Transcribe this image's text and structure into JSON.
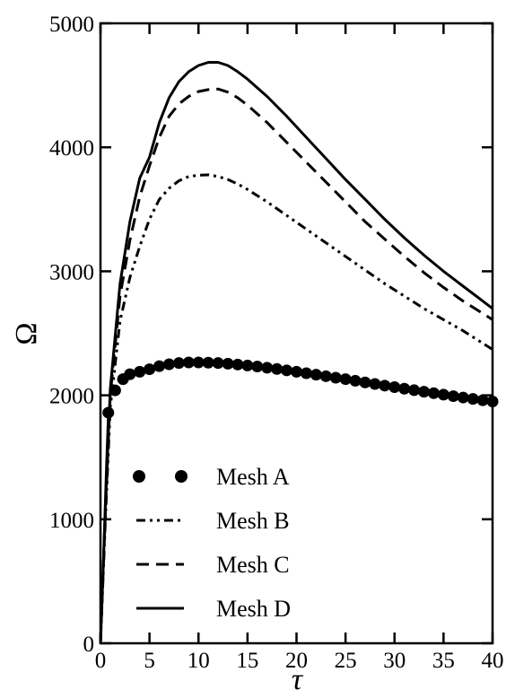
{
  "chart_data": {
    "type": "line",
    "title": "",
    "xlabel": "τ",
    "ylabel": "Ω",
    "xlim": [
      0,
      40
    ],
    "ylim": [
      0,
      5000
    ],
    "xticks": [
      0,
      5,
      10,
      15,
      20,
      25,
      30,
      35,
      40
    ],
    "yticks": [
      0,
      1000,
      2000,
      3000,
      4000,
      5000
    ],
    "grid": false,
    "legend_position": "bottom-left",
    "series": [
      {
        "name": "Mesh A",
        "style": "dots",
        "color": "#000000",
        "points": [
          [
            0,
            0
          ],
          [
            0.3,
            700
          ],
          [
            0.6,
            1450
          ],
          [
            0.8,
            1860
          ],
          [
            1.5,
            2040
          ],
          [
            2.3,
            2130
          ],
          [
            3.0,
            2170
          ],
          [
            4.0,
            2190
          ],
          [
            5.0,
            2210
          ],
          [
            6.0,
            2235
          ],
          [
            7.0,
            2250
          ],
          [
            8.0,
            2260
          ],
          [
            9.0,
            2265
          ],
          [
            10.0,
            2265
          ],
          [
            11.0,
            2263
          ],
          [
            12.0,
            2260
          ],
          [
            13.0,
            2255
          ],
          [
            14.0,
            2248
          ],
          [
            15.0,
            2240
          ],
          [
            16.0,
            2232
          ],
          [
            17.0,
            2222
          ],
          [
            18.0,
            2212
          ],
          [
            19.0,
            2201
          ],
          [
            20.0,
            2190
          ],
          [
            21.0,
            2178
          ],
          [
            22.0,
            2166
          ],
          [
            23.0,
            2154
          ],
          [
            24.0,
            2142
          ],
          [
            25.0,
            2130
          ],
          [
            26.0,
            2117
          ],
          [
            27.0,
            2104
          ],
          [
            28.0,
            2091
          ],
          [
            29.0,
            2078
          ],
          [
            30.0,
            2066
          ],
          [
            31.0,
            2053
          ],
          [
            32.0,
            2041
          ],
          [
            33.0,
            2029
          ],
          [
            34.0,
            2017
          ],
          [
            35.0,
            2005
          ],
          [
            36.0,
            1993
          ],
          [
            37.0,
            1982
          ],
          [
            38.0,
            1971
          ],
          [
            39.0,
            1960
          ],
          [
            40.0,
            1950
          ]
        ]
      },
      {
        "name": "Mesh B",
        "style": "dash-dot-dot",
        "color": "#000000",
        "points": [
          [
            0,
            0
          ],
          [
            0.5,
            1000
          ],
          [
            1.0,
            1900
          ],
          [
            2.0,
            2600
          ],
          [
            3.0,
            2950
          ],
          [
            4.0,
            3200
          ],
          [
            5.0,
            3420
          ],
          [
            6.0,
            3580
          ],
          [
            7.0,
            3670
          ],
          [
            8.0,
            3730
          ],
          [
            9.0,
            3765
          ],
          [
            10.0,
            3775
          ],
          [
            11.0,
            3778
          ],
          [
            12.0,
            3765
          ],
          [
            13.0,
            3740
          ],
          [
            14.0,
            3705
          ],
          [
            15.0,
            3660
          ],
          [
            17.0,
            3560
          ],
          [
            19.0,
            3450
          ],
          [
            21.0,
            3340
          ],
          [
            23.0,
            3230
          ],
          [
            25.0,
            3120
          ],
          [
            27.0,
            3010
          ],
          [
            29.0,
            2900
          ],
          [
            31.0,
            2800
          ],
          [
            33.0,
            2700
          ],
          [
            35.0,
            2610
          ],
          [
            37.0,
            2520
          ],
          [
            39.0,
            2420
          ],
          [
            40.0,
            2370
          ]
        ]
      },
      {
        "name": "Mesh C",
        "style": "dashed",
        "color": "#000000",
        "points": [
          [
            0,
            0
          ],
          [
            0.5,
            1050
          ],
          [
            1.0,
            2000
          ],
          [
            2.0,
            2800
          ],
          [
            3.0,
            3250
          ],
          [
            4.0,
            3600
          ],
          [
            5.0,
            3850
          ],
          [
            6.0,
            4080
          ],
          [
            7.0,
            4250
          ],
          [
            8.0,
            4350
          ],
          [
            9.0,
            4410
          ],
          [
            10.0,
            4450
          ],
          [
            11.0,
            4465
          ],
          [
            12.0,
            4470
          ],
          [
            13.0,
            4445
          ],
          [
            14.0,
            4400
          ],
          [
            15.0,
            4340
          ],
          [
            17.0,
            4200
          ],
          [
            19.0,
            4040
          ],
          [
            21.0,
            3880
          ],
          [
            23.0,
            3720
          ],
          [
            25.0,
            3560
          ],
          [
            27.0,
            3400
          ],
          [
            29.0,
            3260
          ],
          [
            31.0,
            3120
          ],
          [
            33.0,
            2990
          ],
          [
            35.0,
            2870
          ],
          [
            37.0,
            2760
          ],
          [
            39.0,
            2660
          ],
          [
            40.0,
            2610
          ]
        ]
      },
      {
        "name": "Mesh D",
        "style": "solid",
        "color": "#000000",
        "points": [
          [
            0,
            0
          ],
          [
            0.5,
            1100
          ],
          [
            1.0,
            2050
          ],
          [
            2.0,
            2900
          ],
          [
            3.0,
            3400
          ],
          [
            4.0,
            3750
          ],
          [
            5.0,
            3920
          ],
          [
            6.0,
            4200
          ],
          [
            7.0,
            4400
          ],
          [
            8.0,
            4530
          ],
          [
            9.0,
            4610
          ],
          [
            10.0,
            4660
          ],
          [
            11.0,
            4685
          ],
          [
            12.0,
            4685
          ],
          [
            13.0,
            4660
          ],
          [
            14.0,
            4610
          ],
          [
            15.0,
            4550
          ],
          [
            17.0,
            4410
          ],
          [
            19.0,
            4250
          ],
          [
            21.0,
            4080
          ],
          [
            23.0,
            3910
          ],
          [
            25.0,
            3740
          ],
          [
            27.0,
            3580
          ],
          [
            29.0,
            3420
          ],
          [
            31.0,
            3270
          ],
          [
            33.0,
            3130
          ],
          [
            35.0,
            3000
          ],
          [
            37.0,
            2880
          ],
          [
            39.0,
            2760
          ],
          [
            40.0,
            2700
          ]
        ]
      }
    ]
  }
}
